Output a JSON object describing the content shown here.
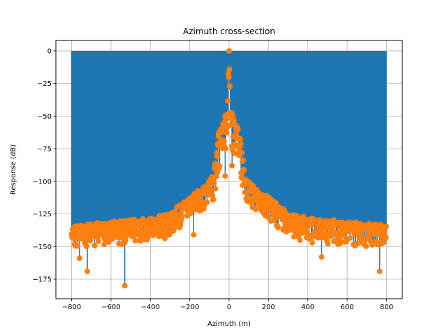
{
  "chart_data": {
    "type": "stem",
    "title": "Azimuth cross-section",
    "xlabel": "Azimuth (m)",
    "ylabel": "Response (dB)",
    "xlim": [
      -880,
      880
    ],
    "ylim": [
      -190,
      8
    ],
    "x_ticks": [
      -800,
      -600,
      -400,
      -200,
      0,
      200,
      400,
      600,
      800
    ],
    "x_tick_labels": [
      "−800",
      "−600",
      "−400",
      "−200",
      "0",
      "200",
      "400",
      "600",
      "800"
    ],
    "y_ticks": [
      0,
      -25,
      -50,
      -75,
      -100,
      -125,
      -150,
      -175
    ],
    "y_tick_labels": [
      "0",
      "−25",
      "−50",
      "−75",
      "−100",
      "−125",
      "−150",
      "−175"
    ],
    "grid": true,
    "baseline": 0,
    "colors": {
      "stem": "#1f77b4",
      "marker": "#ff7f0e",
      "grid": "#b0b0b0",
      "axes": "#000000"
    },
    "series": [
      {
        "x_range": [
          -800,
          800
        ],
        "peak": {
          "x": 0,
          "y": 0
        },
        "sidelobe_envelope": [
          {
            "x": 0,
            "y": 0
          },
          {
            "x": 10,
            "y": -45
          },
          {
            "x": 30,
            "y": -55
          },
          {
            "x": 60,
            "y": -65
          },
          {
            "x": 80,
            "y": -95
          },
          {
            "x": 120,
            "y": -103
          },
          {
            "x": 200,
            "y": -112
          },
          {
            "x": 300,
            "y": -123
          },
          {
            "x": 400,
            "y": -128
          },
          {
            "x": 800,
            "y": -133
          }
        ],
        "notable_nulls": [
          {
            "x": -530,
            "y": -180
          },
          {
            "x": -720,
            "y": -169
          },
          {
            "x": 765,
            "y": -169
          },
          {
            "x": -760,
            "y": -159
          },
          {
            "x": 470,
            "y": -158
          },
          {
            "x": -180,
            "y": -141
          },
          {
            "x": -20,
            "y": -96
          },
          {
            "x": 15,
            "y": -88
          }
        ]
      }
    ]
  }
}
